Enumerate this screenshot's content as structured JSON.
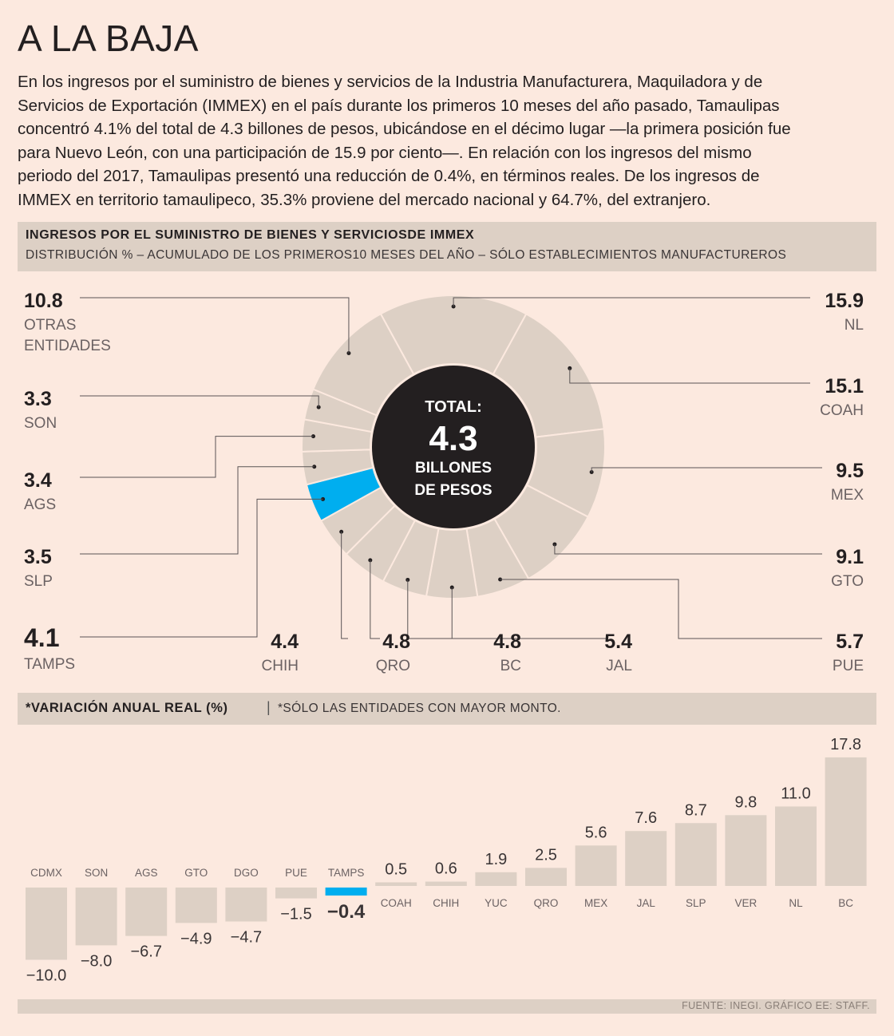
{
  "title": "A LA BAJA",
  "intro_lines": [
    "En los ingresos por el suministro de bienes y servicios de la Industria Manufacturera, Maquiladora y de",
    "Servicios de Exportación (IMMEX) en el país durante los primeros 10 meses del año pasado, Tamaulipas",
    "concentró 4.1% del total de 4.3 billones de pesos, ubicándose en el décimo lugar —la primera posición fue",
    "para Nuevo León, con una participación de 15.9 por ciento—. En relación con los ingresos del mismo",
    "periodo del 2017, Tamaulipas presentó una reducción de 0.4%, en términos reales. De los ingresos de",
    "IMMEX en territorio tamaulipeco, 35.3% proviene del mercado nacional y 64.7%, del extranjero."
  ],
  "section1": {
    "title": "INGRESOS POR EL SUMINISTRO DE BIENES Y SERVICIOSDE IMMEX",
    "subtitle": "DISTRIBUCIÓN % – ACUMULADO DE LOS PRIMEROS10 MESES DEL AÑO – SÓLO ESTABLECIMIENTOS MANUFACTUREROS"
  },
  "section2": {
    "title": "*VARIACIÓN ANUAL REAL (%)",
    "separator": "|",
    "subtitle": "*SÓLO LAS ENTIDADES CON MAYOR MONTO."
  },
  "source": "FUENTE: INEGI. GRÁFICO EE: STAFF.",
  "colors": {
    "background": "#fce9df",
    "segment": "#ddd0c5",
    "highlight": "#00aeef",
    "center": "#231f20",
    "band": "#ddd0c5"
  },
  "chart_data": [
    {
      "type": "pie",
      "variant": "donut",
      "center_label": {
        "line1": "TOTAL:",
        "value": "4.3",
        "line2": "BILLONES",
        "line3": "DE PESOS"
      },
      "highlight": "TAMPS",
      "slices": [
        {
          "label": "NL",
          "value": 15.9,
          "value_text": "15.9"
        },
        {
          "label": "COAH",
          "value": 15.1,
          "value_text": "15.1"
        },
        {
          "label": "MEX",
          "value": 9.5,
          "value_text": "9.5"
        },
        {
          "label": "GTO",
          "value": 9.1,
          "value_text": "9.1"
        },
        {
          "label": "PUE",
          "value": 5.7,
          "value_text": "5.7"
        },
        {
          "label": "JAL",
          "value": 5.4,
          "value_text": "5.4"
        },
        {
          "label": "BC",
          "value": 4.8,
          "value_text": "4.8"
        },
        {
          "label": "QRO",
          "value": 4.8,
          "value_text": "4.8"
        },
        {
          "label": "CHIH",
          "value": 4.4,
          "value_text": "4.4"
        },
        {
          "label": "TAMPS",
          "value": 4.1,
          "value_text": "4.1"
        },
        {
          "label": "SLP",
          "value": 3.5,
          "value_text": "3.5"
        },
        {
          "label": "AGS",
          "value": 3.4,
          "value_text": "3.4"
        },
        {
          "label": "SON",
          "value": 3.3,
          "value_text": "3.3"
        },
        {
          "label": "OTRAS ENTIDADES",
          "label_lines": [
            "OTRAS",
            "ENTIDADES"
          ],
          "value": 10.8,
          "value_text": "10.8"
        }
      ]
    },
    {
      "type": "bar",
      "highlight": "TAMPS",
      "categories": [
        "CDMX",
        "SON",
        "AGS",
        "GTO",
        "DGO",
        "PUE",
        "TAMPS",
        "COAH",
        "CHIH",
        "YUC",
        "QRO",
        "MEX",
        "JAL",
        "SLP",
        "VER",
        "NL",
        "BC"
      ],
      "values": [
        -10.0,
        -8.0,
        -6.7,
        -4.9,
        -4.7,
        -1.5,
        -0.4,
        0.5,
        0.6,
        1.9,
        2.5,
        5.6,
        7.6,
        8.7,
        9.8,
        11.0,
        17.8
      ],
      "value_labels": [
        "−10.0",
        "−8.0",
        "−6.7",
        "−4.9",
        "−4.7",
        "−1.5",
        "−0.4",
        "0.5",
        "0.6",
        "1.9",
        "2.5",
        "5.6",
        "7.6",
        "8.7",
        "9.8",
        "11.0",
        "17.8"
      ]
    }
  ]
}
